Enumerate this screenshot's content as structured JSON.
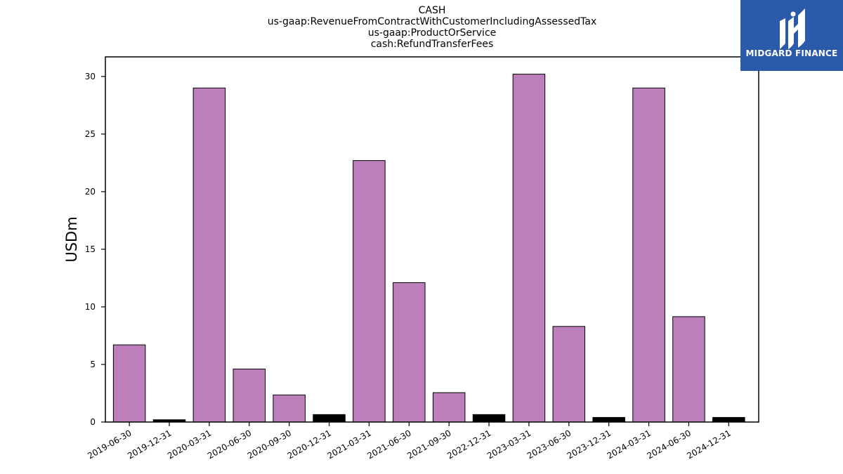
{
  "chart_data": {
    "type": "bar",
    "title_lines": [
      "CASH",
      "us-gaap:RevenueFromContractWithCustomerIncludingAssessedTax",
      "us-gaap:ProductOrService",
      "cash:RefundTransferFees"
    ],
    "ylabel": "USDm",
    "xlabel": "",
    "ylim": [
      0,
      31.7
    ],
    "yticks": [
      0,
      5,
      10,
      15,
      20,
      25,
      30
    ],
    "categories": [
      "2019-06-30",
      "2019-12-31",
      "2020-03-31",
      "2020-06-30",
      "2020-09-30",
      "2020-12-31",
      "2021-03-31",
      "2021-06-30",
      "2021-09-30",
      "2022-12-31",
      "2023-03-31",
      "2023-06-30",
      "2023-12-31",
      "2024-03-31",
      "2024-06-30",
      "2024-12-31"
    ],
    "values": [
      6.7,
      0.2,
      29.0,
      4.6,
      2.35,
      0.65,
      22.7,
      12.1,
      2.55,
      0.65,
      30.2,
      8.3,
      0.4,
      29.0,
      9.15,
      0.4
    ],
    "bar_colors": [
      "#bc7fbc",
      "#000000",
      "#bc7fbc",
      "#bc7fbc",
      "#bc7fbc",
      "#000000",
      "#bc7fbc",
      "#bc7fbc",
      "#bc7fbc",
      "#000000",
      "#bc7fbc",
      "#bc7fbc",
      "#000000",
      "#bc7fbc",
      "#bc7fbc",
      "#000000"
    ],
    "grid": false,
    "legend": "none"
  },
  "logo": {
    "text": "MIDGARD FINANCE",
    "background": "#2b5aab"
  }
}
